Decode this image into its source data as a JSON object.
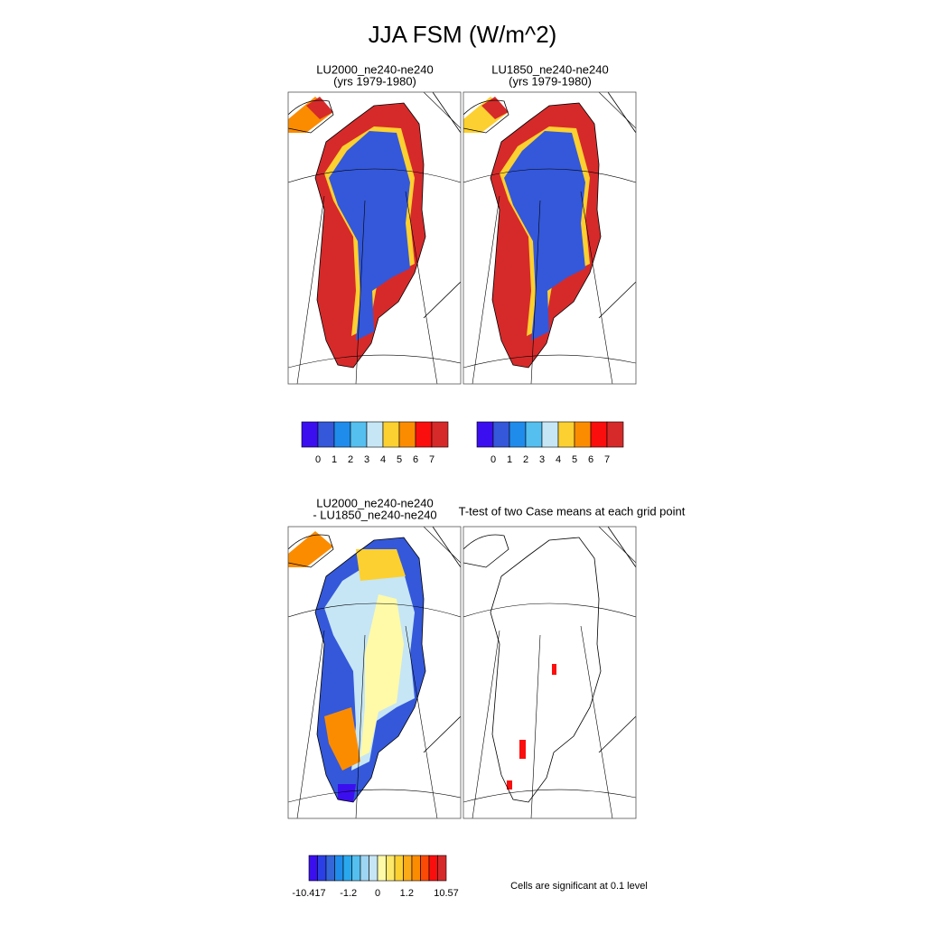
{
  "title": "JJA FSM (W/m^2)",
  "panels": [
    {
      "title": [
        "LU2000_ne240-ne240",
        "(yrs 1979-1980)"
      ]
    },
    {
      "title": [
        "LU1850_ne240-ne240",
        "(yrs 1979-1980)"
      ]
    },
    {
      "title": [
        "LU2000_ne240-ne240",
        "- LU1850_ne240-ne240"
      ]
    },
    {
      "title": [
        "T-test of two Case means at each grid point"
      ]
    }
  ],
  "colorbars": [
    {
      "colors": [
        "#3b0ef0",
        "#3458d9",
        "#1f8ceb",
        "#55bff0",
        "#c6e6f6",
        "#fcd030",
        "#fb8c00",
        "#fb0e0e",
        "#d62a2a"
      ],
      "labels": [
        "0",
        "1",
        "2",
        "3",
        "4",
        "5",
        "6",
        "7"
      ]
    },
    {
      "colors": [
        "#3b0ef0",
        "#3458d9",
        "#1f8ceb",
        "#55bff0",
        "#c6e6f6",
        "#fcd030",
        "#fb8c00",
        "#fb0e0e",
        "#d62a2a"
      ],
      "labels": [
        "0",
        "1",
        "2",
        "3",
        "4",
        "5",
        "6",
        "7"
      ]
    },
    {
      "colors": [
        "#3b0ef0",
        "#2b3fe6",
        "#3466d9",
        "#1f8ceb",
        "#2aa8ee",
        "#55bff0",
        "#9ed5f2",
        "#c6e6f6",
        "#fffaa8",
        "#fde86a",
        "#fcd030",
        "#fbaa18",
        "#fb8c00",
        "#fb4a06",
        "#fb0e0e",
        "#d62a2a"
      ],
      "labels": [
        "-10.417",
        "-1.2",
        "0",
        "1.2",
        "10.57"
      ]
    }
  ],
  "note": "Cells are significant at 0.1 level"
}
